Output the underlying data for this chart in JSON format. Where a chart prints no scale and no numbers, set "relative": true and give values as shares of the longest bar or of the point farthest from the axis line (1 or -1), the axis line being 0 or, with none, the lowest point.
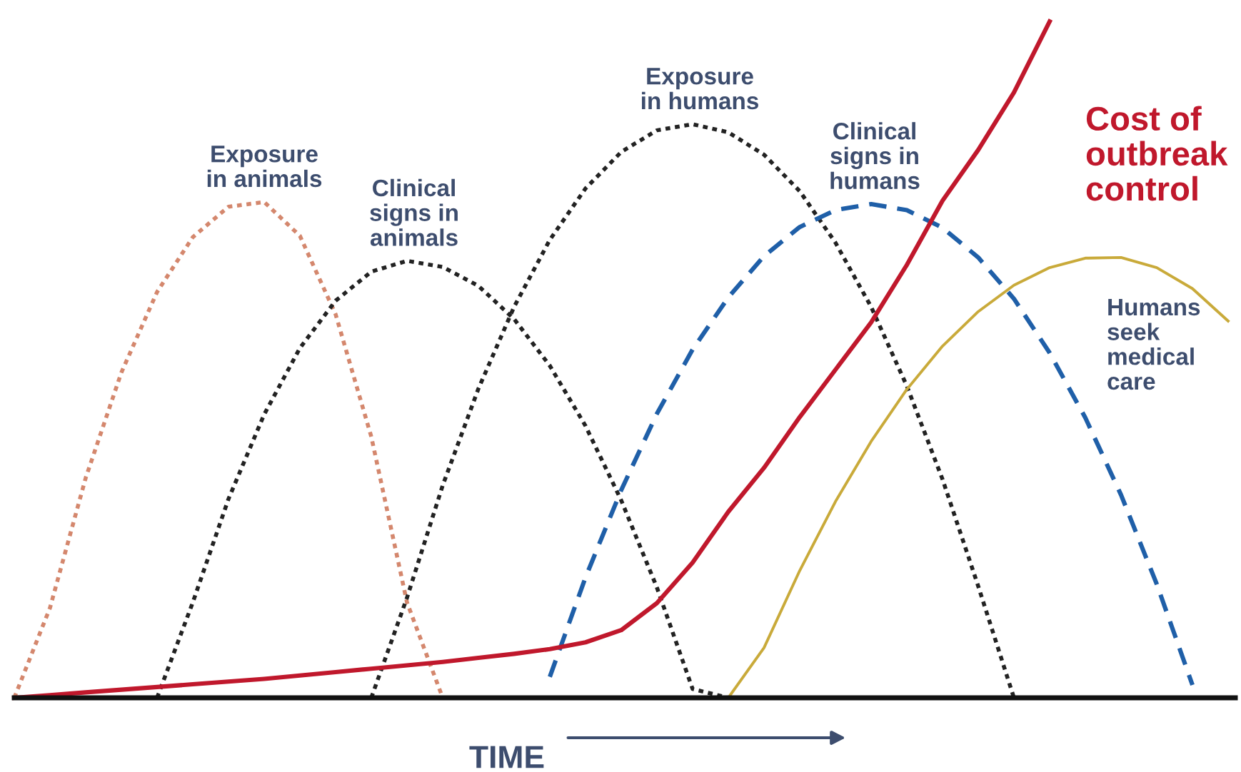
{
  "chart_data": {
    "type": "line",
    "relative": true,
    "xlabel": "TIME",
    "grid": false,
    "legend": false,
    "categories": [
      null,
      null,
      null,
      null,
      null,
      null,
      null,
      null,
      null,
      null,
      null,
      null,
      null,
      null,
      null,
      null,
      null,
      null,
      null,
      null,
      null,
      null,
      null,
      null,
      null,
      null,
      null,
      null,
      null,
      null,
      null,
      null,
      null,
      null,
      null
    ],
    "series": [
      {
        "name": "Exposure\nin animals",
        "color": "#d4876d",
        "line_style": "dotted",
        "values": [
          0,
          0.133,
          0.325,
          0.481,
          0.6,
          0.681,
          0.726,
          0.733,
          0.683,
          0.567,
          0.386,
          0.141,
          0,
          null,
          null,
          null,
          null,
          null,
          null,
          null,
          null,
          null,
          null,
          null,
          null,
          null,
          null,
          null,
          null,
          null,
          null,
          null,
          null,
          null,
          null
        ]
      },
      {
        "name": "Clinical\nsigns in\nanimals",
        "color": "#222222",
        "line_style": "dotted",
        "values": [
          null,
          null,
          null,
          null,
          0,
          0.141,
          0.294,
          0.419,
          0.517,
          0.587,
          0.63,
          0.646,
          0.637,
          0.609,
          0.56,
          0.491,
          0.402,
          0.292,
          0.163,
          0.013,
          0,
          null,
          null,
          null,
          null,
          null,
          null,
          null,
          null,
          null,
          null,
          null,
          null,
          null,
          null
        ]
      },
      {
        "name": "Exposure\nin humans",
        "color": "#222222",
        "line_style": "dotted",
        "values": [
          null,
          null,
          null,
          null,
          null,
          null,
          null,
          null,
          null,
          null,
          0,
          0.148,
          0.314,
          0.457,
          0.578,
          0.677,
          0.753,
          0.807,
          0.839,
          0.848,
          0.836,
          0.803,
          0.749,
          0.673,
          0.578,
          0.461,
          0.323,
          0.165,
          0,
          null,
          null,
          null,
          null,
          null,
          null
        ]
      },
      {
        "name": "Clinical\nsigns in\nhumans",
        "color": "#1f5fa8",
        "line_style": "dashed",
        "values": [
          null,
          null,
          null,
          null,
          null,
          null,
          null,
          null,
          null,
          null,
          null,
          null,
          null,
          null,
          null,
          0.031,
          0.178,
          0.307,
          0.42,
          0.515,
          0.592,
          0.653,
          0.696,
          0.721,
          0.73,
          0.721,
          0.695,
          0.651,
          0.59,
          0.51,
          0.414,
          0.3,
          0.168,
          0.019,
          null
        ]
      },
      {
        "name": "Cost of\noutbreak\ncontrol",
        "color": "#c0182c",
        "line_style": "solid",
        "values": [
          0,
          0.004,
          0.008,
          0.012,
          0.016,
          0.02,
          0.024,
          0.028,
          0.033,
          0.038,
          0.043,
          0.048,
          0.053,
          0.059,
          0.065,
          0.072,
          0.082,
          0.1,
          0.14,
          0.2,
          0.275,
          0.34,
          0.415,
          0.485,
          0.555,
          0.64,
          0.735,
          0.81,
          0.895,
          1.0,
          null,
          null,
          null,
          null,
          null
        ]
      },
      {
        "name": "Humans\nseek\nmedical\ncare",
        "color": "#c9aa3a",
        "line_style": "solid",
        "values": [
          null,
          null,
          null,
          null,
          null,
          null,
          null,
          null,
          null,
          null,
          null,
          null,
          null,
          null,
          null,
          null,
          null,
          null,
          null,
          null,
          0,
          0.074,
          0.188,
          0.29,
          0.379,
          0.456,
          0.52,
          0.571,
          0.61,
          0.636,
          0.65,
          0.651,
          0.636,
          0.605,
          0.557
        ]
      }
    ]
  }
}
